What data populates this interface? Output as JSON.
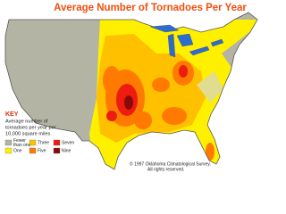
{
  "header": {
    "title": "Average Number of Tornadoes Per Year"
  },
  "key": {
    "title": "KEY",
    "description": [
      "Average number of",
      "tornadoes per year per",
      "10,000 square miles"
    ],
    "items": [
      {
        "label": [
          "Fewer",
          "than one"
        ],
        "color": "#b4b4a4"
      },
      {
        "label": [
          "One"
        ],
        "color": "#fff000"
      },
      {
        "label": [
          "Three"
        ],
        "color": "#ffc000"
      },
      {
        "label": [
          "Five"
        ],
        "color": "#ff7a00"
      },
      {
        "label": [
          "Seven"
        ],
        "color": "#ee1c10"
      },
      {
        "label": [
          "Nine"
        ],
        "color": "#8a0a0a"
      }
    ]
  },
  "credit": [
    "© 1997 Oklahoma Climatological Survey.",
    "All rights reserved."
  ]
}
